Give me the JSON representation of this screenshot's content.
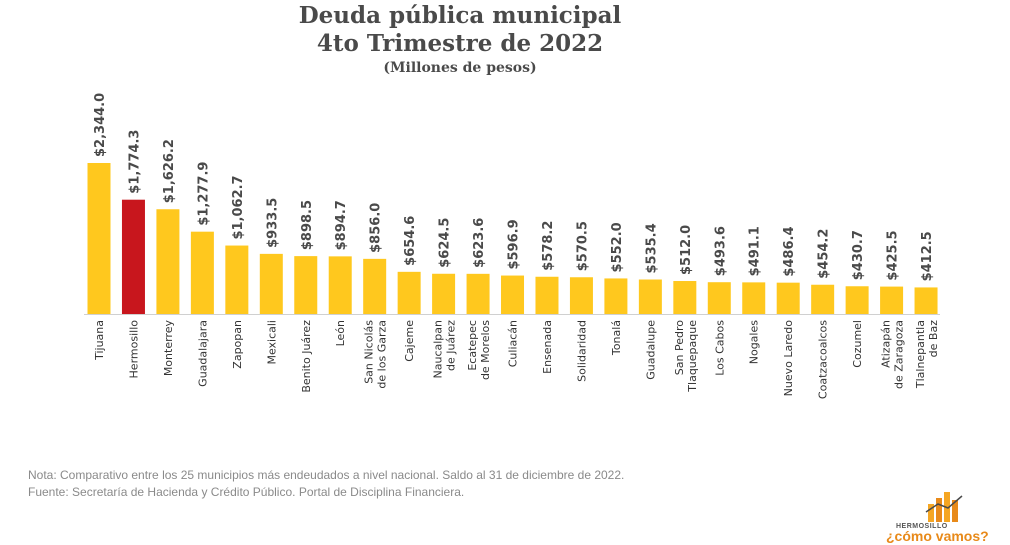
{
  "title": {
    "line1": "Deuda pública municipal",
    "line2": "4to Trimestre de 2022",
    "subtitle": "(Millones de pesos)"
  },
  "notes": {
    "nota": "Nota: Comparativo entre los 25 municipios más endeudados a nivel nacional. Saldo al 31 de diciembre de 2022.",
    "fuente": "Fuente: Secretaría de Hacienda y Crédito Público. Portal de Disciplina Financiera."
  },
  "logo": {
    "city": "HERMOSILLO",
    "slogan": "¿cómo vamos?",
    "colors": [
      "#f5a623",
      "#e88a1a",
      "#4a4a4a"
    ]
  },
  "chart_data": {
    "type": "bar",
    "title": "Deuda pública municipal 4to Trimestre de 2022",
    "subtitle": "(Millones de pesos)",
    "xlabel": "",
    "ylabel": "",
    "ylim": [
      0,
      2344
    ],
    "grid": false,
    "legend": "none",
    "categories": [
      [
        "Tijuana"
      ],
      [
        "Hermosillo"
      ],
      [
        "Monterrey"
      ],
      [
        "Guadalajara"
      ],
      [
        "Zapopan"
      ],
      [
        "Mexicali"
      ],
      [
        "Benito Juárez"
      ],
      [
        "León"
      ],
      [
        "San Nicolás",
        "de los Garza"
      ],
      [
        "Cajeme"
      ],
      [
        "Naucalpan",
        "de Juárez"
      ],
      [
        "Ecatepec",
        "de Morelos"
      ],
      [
        "Culiacán"
      ],
      [
        "Ensenada"
      ],
      [
        "Solidaridad"
      ],
      [
        "Tonalá"
      ],
      [
        "Guadalupe"
      ],
      [
        "San Pedro",
        "Tlaquepaque"
      ],
      [
        "Los Cabos"
      ],
      [
        "Nogales"
      ],
      [
        "Nuevo Laredo"
      ],
      [
        "Coatzacoalcos"
      ],
      [
        "Cozumel"
      ],
      [
        "Atizapán",
        "de Zaragoza"
      ],
      [
        "Tlalnepantla",
        "de Baz"
      ]
    ],
    "values": [
      2344.0,
      1774.3,
      1626.2,
      1277.9,
      1062.7,
      933.5,
      898.5,
      894.7,
      856.0,
      654.6,
      624.5,
      623.6,
      596.9,
      578.2,
      570.5,
      552.0,
      535.4,
      512.0,
      493.6,
      491.1,
      486.4,
      454.2,
      430.7,
      425.5,
      412.5
    ],
    "labels": [
      "$2,344.0",
      "$1,774.3",
      "$1,626.2",
      "$1,277.9",
      "$1,062.7",
      "$933.5",
      "$898.5",
      "$894.7",
      "$856.0",
      "$654.6",
      "$624.5",
      "$623.6",
      "$596.9",
      "$578.2",
      "$570.5",
      "$552.0",
      "$535.4",
      "$512.0",
      "$493.6",
      "$491.1",
      "$486.4",
      "$454.2",
      "$430.7",
      "$425.5",
      "$412.5"
    ],
    "colors": {
      "default": "#ffc81e",
      "highlight": "#c8161d",
      "highlight_category": "Hermosillo",
      "label_text": "#4a4a4a",
      "axis": "#d0d0d0"
    }
  }
}
